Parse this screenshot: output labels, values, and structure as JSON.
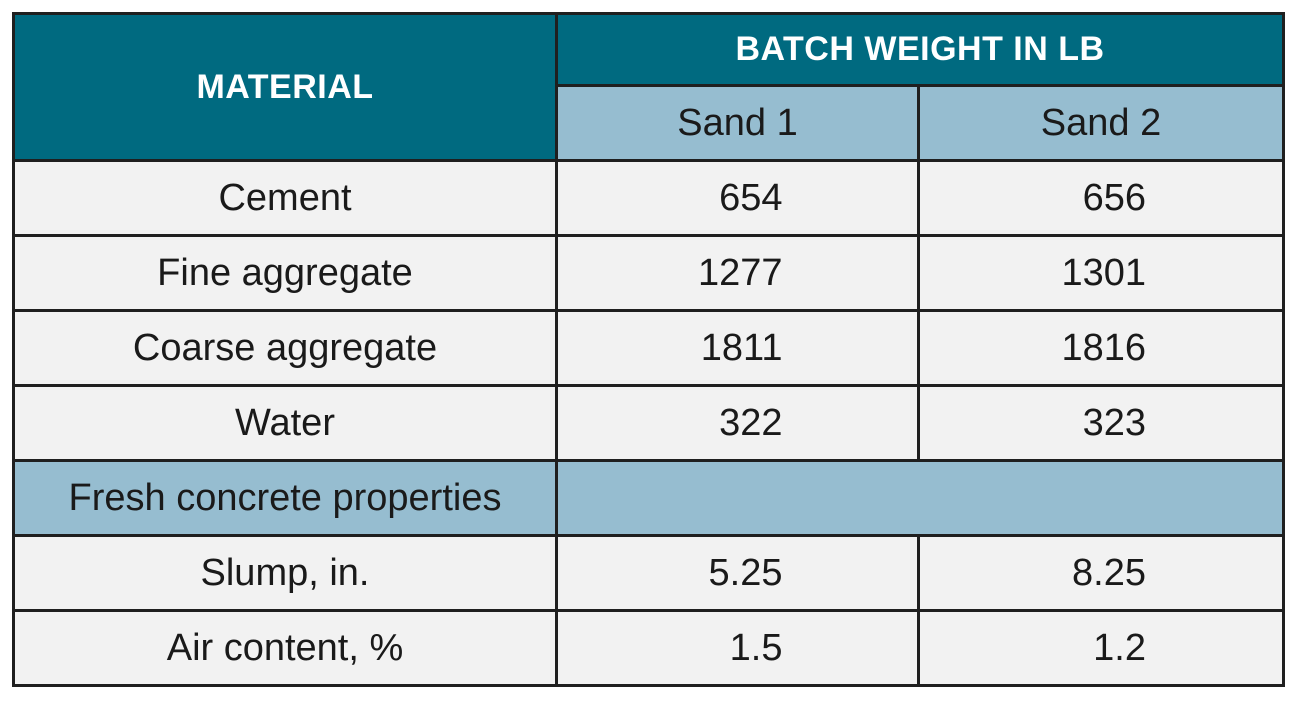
{
  "header": {
    "material": "MATERIAL",
    "batch_weight": "BATCH WEIGHT IN LB",
    "sand1": "Sand 1",
    "sand2": "Sand 2"
  },
  "rows": [
    {
      "material": "Cement",
      "sand1": "654",
      "sand2": "656"
    },
    {
      "material": "Fine aggregate",
      "sand1": "1277",
      "sand2": "1301"
    },
    {
      "material": "Coarse aggregate",
      "sand1": "1811",
      "sand2": "1816"
    },
    {
      "material": "Water",
      "sand1": "322",
      "sand2": "323"
    }
  ],
  "section": {
    "label": "Fresh concrete properties"
  },
  "properties": [
    {
      "material": "Slump, in.",
      "sand1": "5.25",
      "sand2": "8.25"
    },
    {
      "material": "Air content, %",
      "sand1": "1.5",
      "sand2": "1.2"
    }
  ],
  "colors": {
    "header_dark": "#006a80",
    "header_light": "#96bdd0",
    "cell_bg": "#f2f2f2",
    "border": "#1f1f1f"
  }
}
